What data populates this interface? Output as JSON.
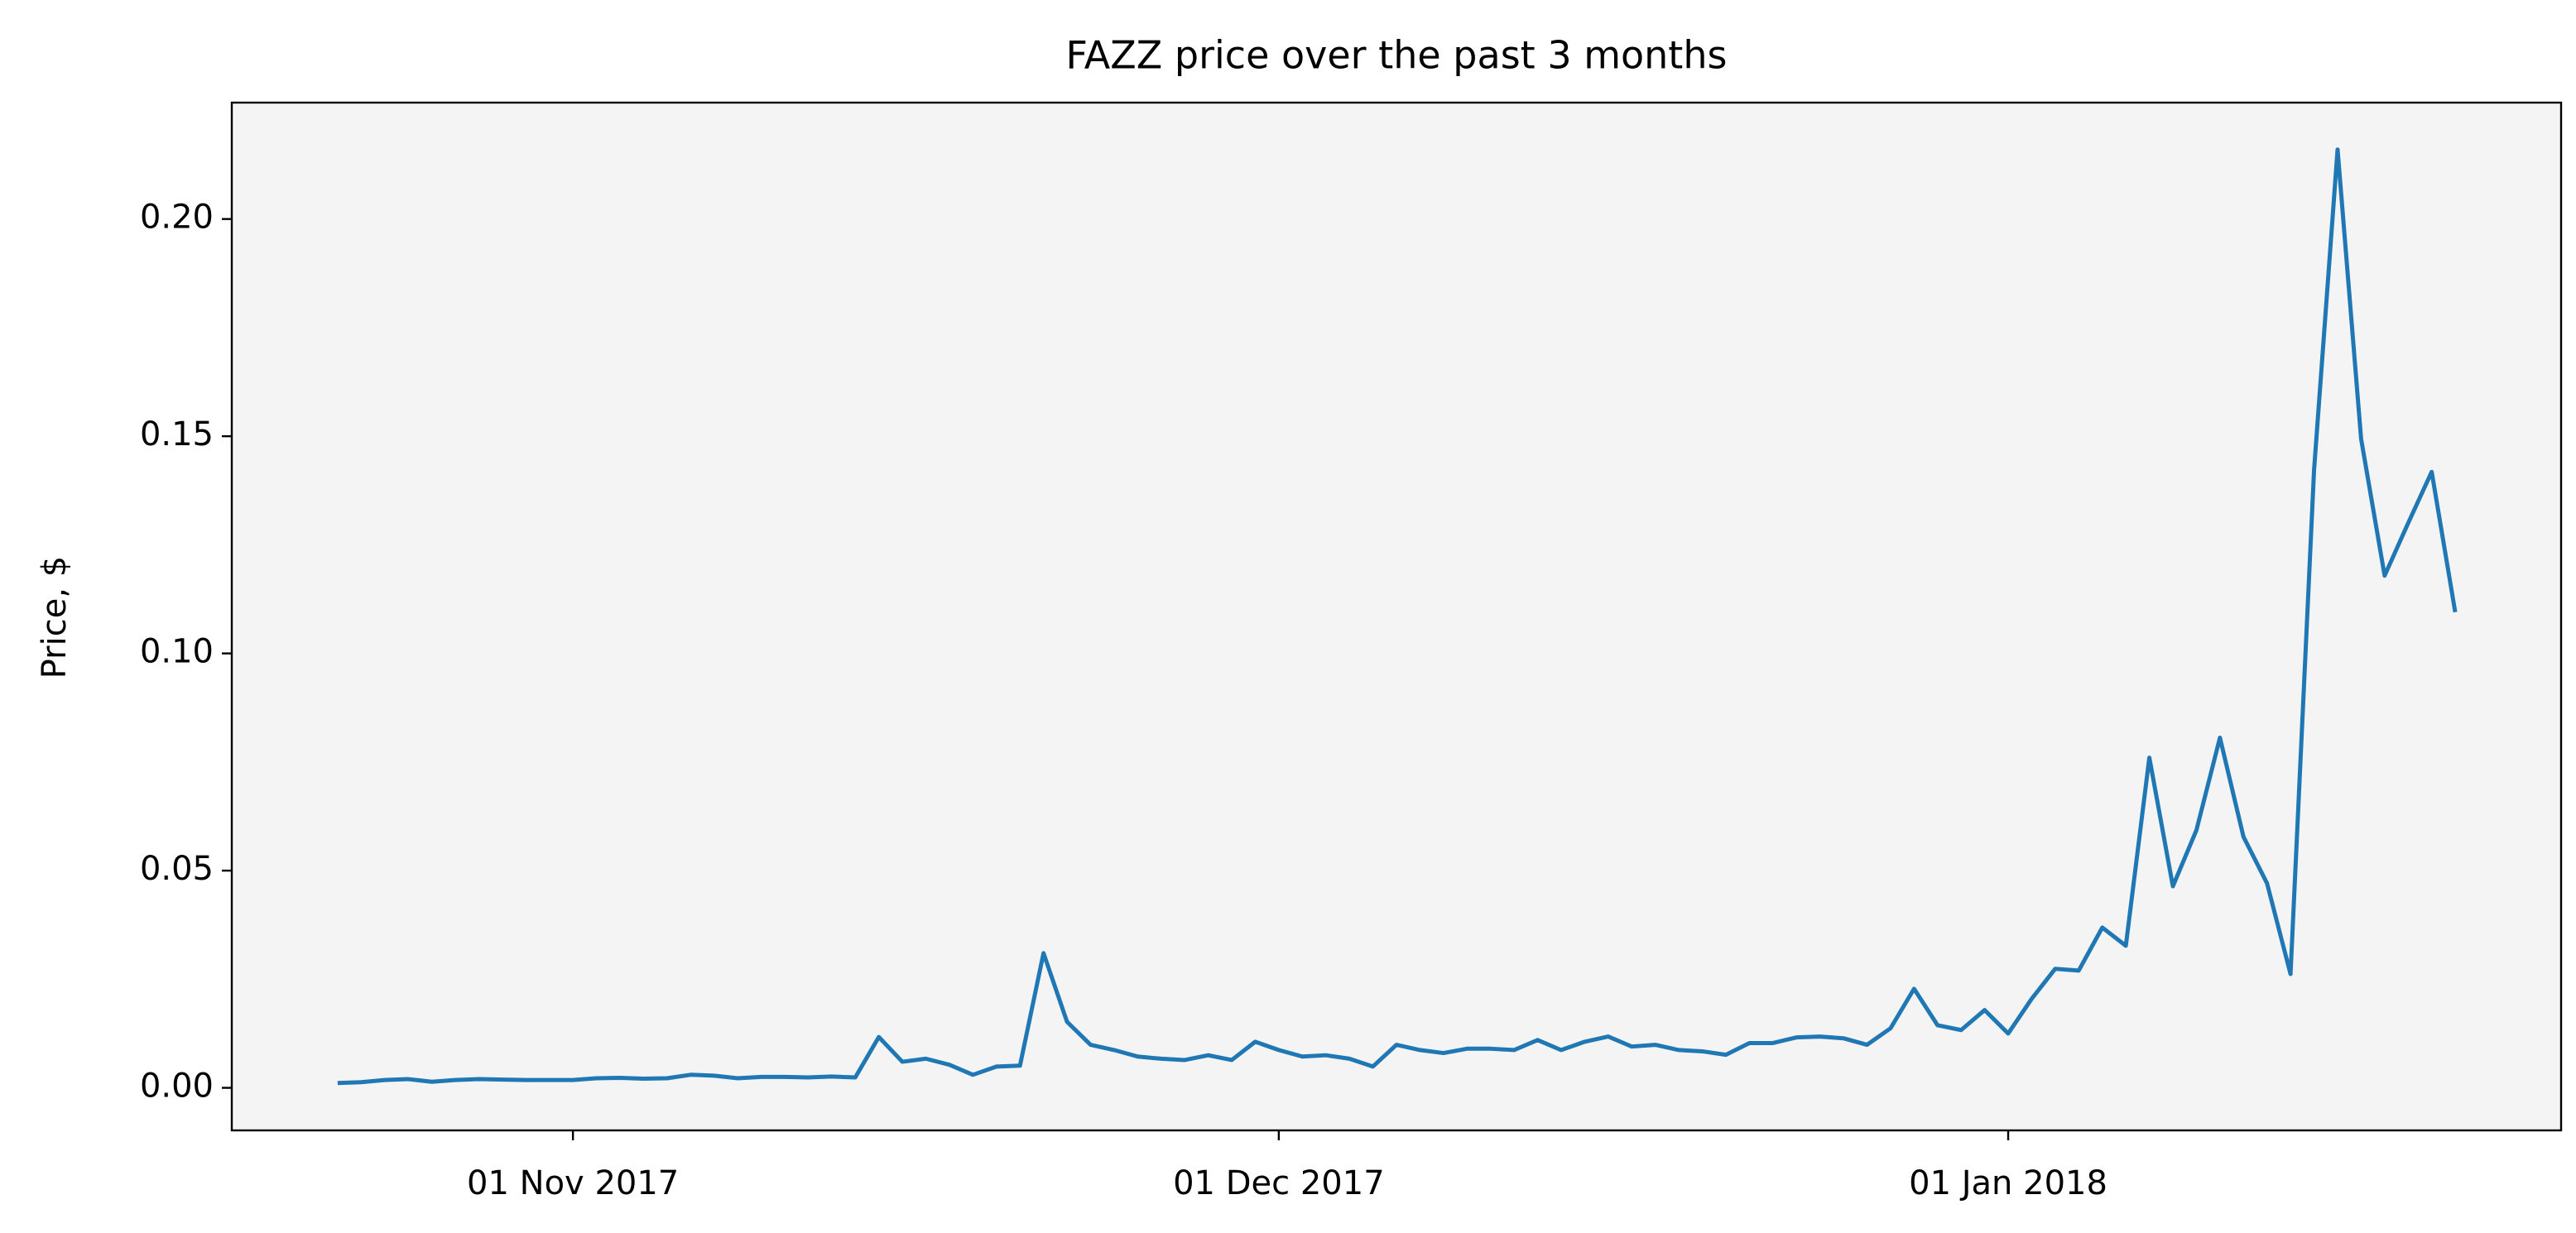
{
  "chart_data": {
    "type": "line",
    "title": "FAZZ price over the past 3 months",
    "y_label": "Price, $",
    "x": [
      "2017-10-22",
      "2017-10-23",
      "2017-10-24",
      "2017-10-25",
      "2017-10-26",
      "2017-10-27",
      "2017-10-28",
      "2017-10-29",
      "2017-10-30",
      "2017-10-31",
      "2017-11-01",
      "2017-11-02",
      "2017-11-03",
      "2017-11-04",
      "2017-11-05",
      "2017-11-06",
      "2017-11-07",
      "2017-11-08",
      "2017-11-09",
      "2017-11-10",
      "2017-11-11",
      "2017-11-12",
      "2017-11-13",
      "2017-11-14",
      "2017-11-15",
      "2017-11-16",
      "2017-11-17",
      "2017-11-18",
      "2017-11-19",
      "2017-11-20",
      "2017-11-21",
      "2017-11-22",
      "2017-11-23",
      "2017-11-24",
      "2017-11-25",
      "2017-11-26",
      "2017-11-27",
      "2017-11-28",
      "2017-11-29",
      "2017-11-30",
      "2017-12-01",
      "2017-12-02",
      "2017-12-03",
      "2017-12-04",
      "2017-12-05",
      "2017-12-06",
      "2017-12-07",
      "2017-12-08",
      "2017-12-09",
      "2017-12-10",
      "2017-12-11",
      "2017-12-12",
      "2017-12-13",
      "2017-12-14",
      "2017-12-15",
      "2017-12-16",
      "2017-12-17",
      "2017-12-18",
      "2017-12-19",
      "2017-12-20",
      "2017-12-21",
      "2017-12-22",
      "2017-12-23",
      "2017-12-24",
      "2017-12-25",
      "2017-12-26",
      "2017-12-27",
      "2017-12-28",
      "2017-12-29",
      "2017-12-30",
      "2017-12-31",
      "2018-01-01",
      "2018-01-02",
      "2018-01-03",
      "2018-01-04",
      "2018-01-05",
      "2018-01-06",
      "2018-01-07",
      "2018-01-08",
      "2018-01-09",
      "2018-01-10",
      "2018-01-11",
      "2018-01-12",
      "2018-01-13",
      "2018-01-14",
      "2018-01-15",
      "2018-01-16",
      "2018-01-17",
      "2018-01-18",
      "2018-01-19",
      "2018-01-20"
    ],
    "values": [
      0.0011,
      0.0013,
      0.0018,
      0.002,
      0.0014,
      0.0018,
      0.002,
      0.0019,
      0.0018,
      0.0018,
      0.0018,
      0.0022,
      0.0023,
      0.0021,
      0.0022,
      0.003,
      0.0028,
      0.0022,
      0.0025,
      0.0025,
      0.0024,
      0.0026,
      0.0024,
      0.0117,
      0.006,
      0.0067,
      0.0053,
      0.003,
      0.0049,
      0.0051,
      0.031,
      0.0152,
      0.0099,
      0.0087,
      0.0072,
      0.0067,
      0.0064,
      0.0075,
      0.0064,
      0.0106,
      0.0087,
      0.0072,
      0.0075,
      0.0067,
      0.0049,
      0.0099,
      0.0087,
      0.008,
      0.009,
      0.009,
      0.0087,
      0.011,
      0.0087,
      0.0106,
      0.0118,
      0.0095,
      0.0099,
      0.0087,
      0.0084,
      0.0076,
      0.0103,
      0.0103,
      0.0116,
      0.0118,
      0.0114,
      0.0099,
      0.0137,
      0.0228,
      0.0144,
      0.0133,
      0.0179,
      0.0125,
      0.0205,
      0.0274,
      0.027,
      0.0369,
      0.0327,
      0.076,
      0.0464,
      0.0593,
      0.0806,
      0.0578,
      0.0471,
      0.0262,
      0.1422,
      0.216,
      0.1494,
      0.1179,
      0.13,
      0.1418,
      0.1095
    ],
    "color": "#1f77b4",
    "xlim": [
      "2017-10-17 12:00",
      "2018-01-24 12:00"
    ],
    "xticks": [
      {
        "value": "2017-11-01",
        "label": "01 Nov 2017"
      },
      {
        "value": "2017-12-01",
        "label": "01 Dec 2017"
      },
      {
        "value": "2018-01-01",
        "label": "01 Jan 2018"
      }
    ],
    "ylim": [
      -0.0098,
      0.2268
    ],
    "yticks": [
      {
        "value": 0,
        "label": "0.00"
      },
      {
        "value": 0.05,
        "label": "0.05"
      },
      {
        "value": 0.1,
        "label": "0.10"
      },
      {
        "value": 0.15,
        "label": "0.15"
      },
      {
        "value": 0.2,
        "label": "0.20"
      }
    ],
    "grid": false,
    "background": "#f4f4f4"
  }
}
